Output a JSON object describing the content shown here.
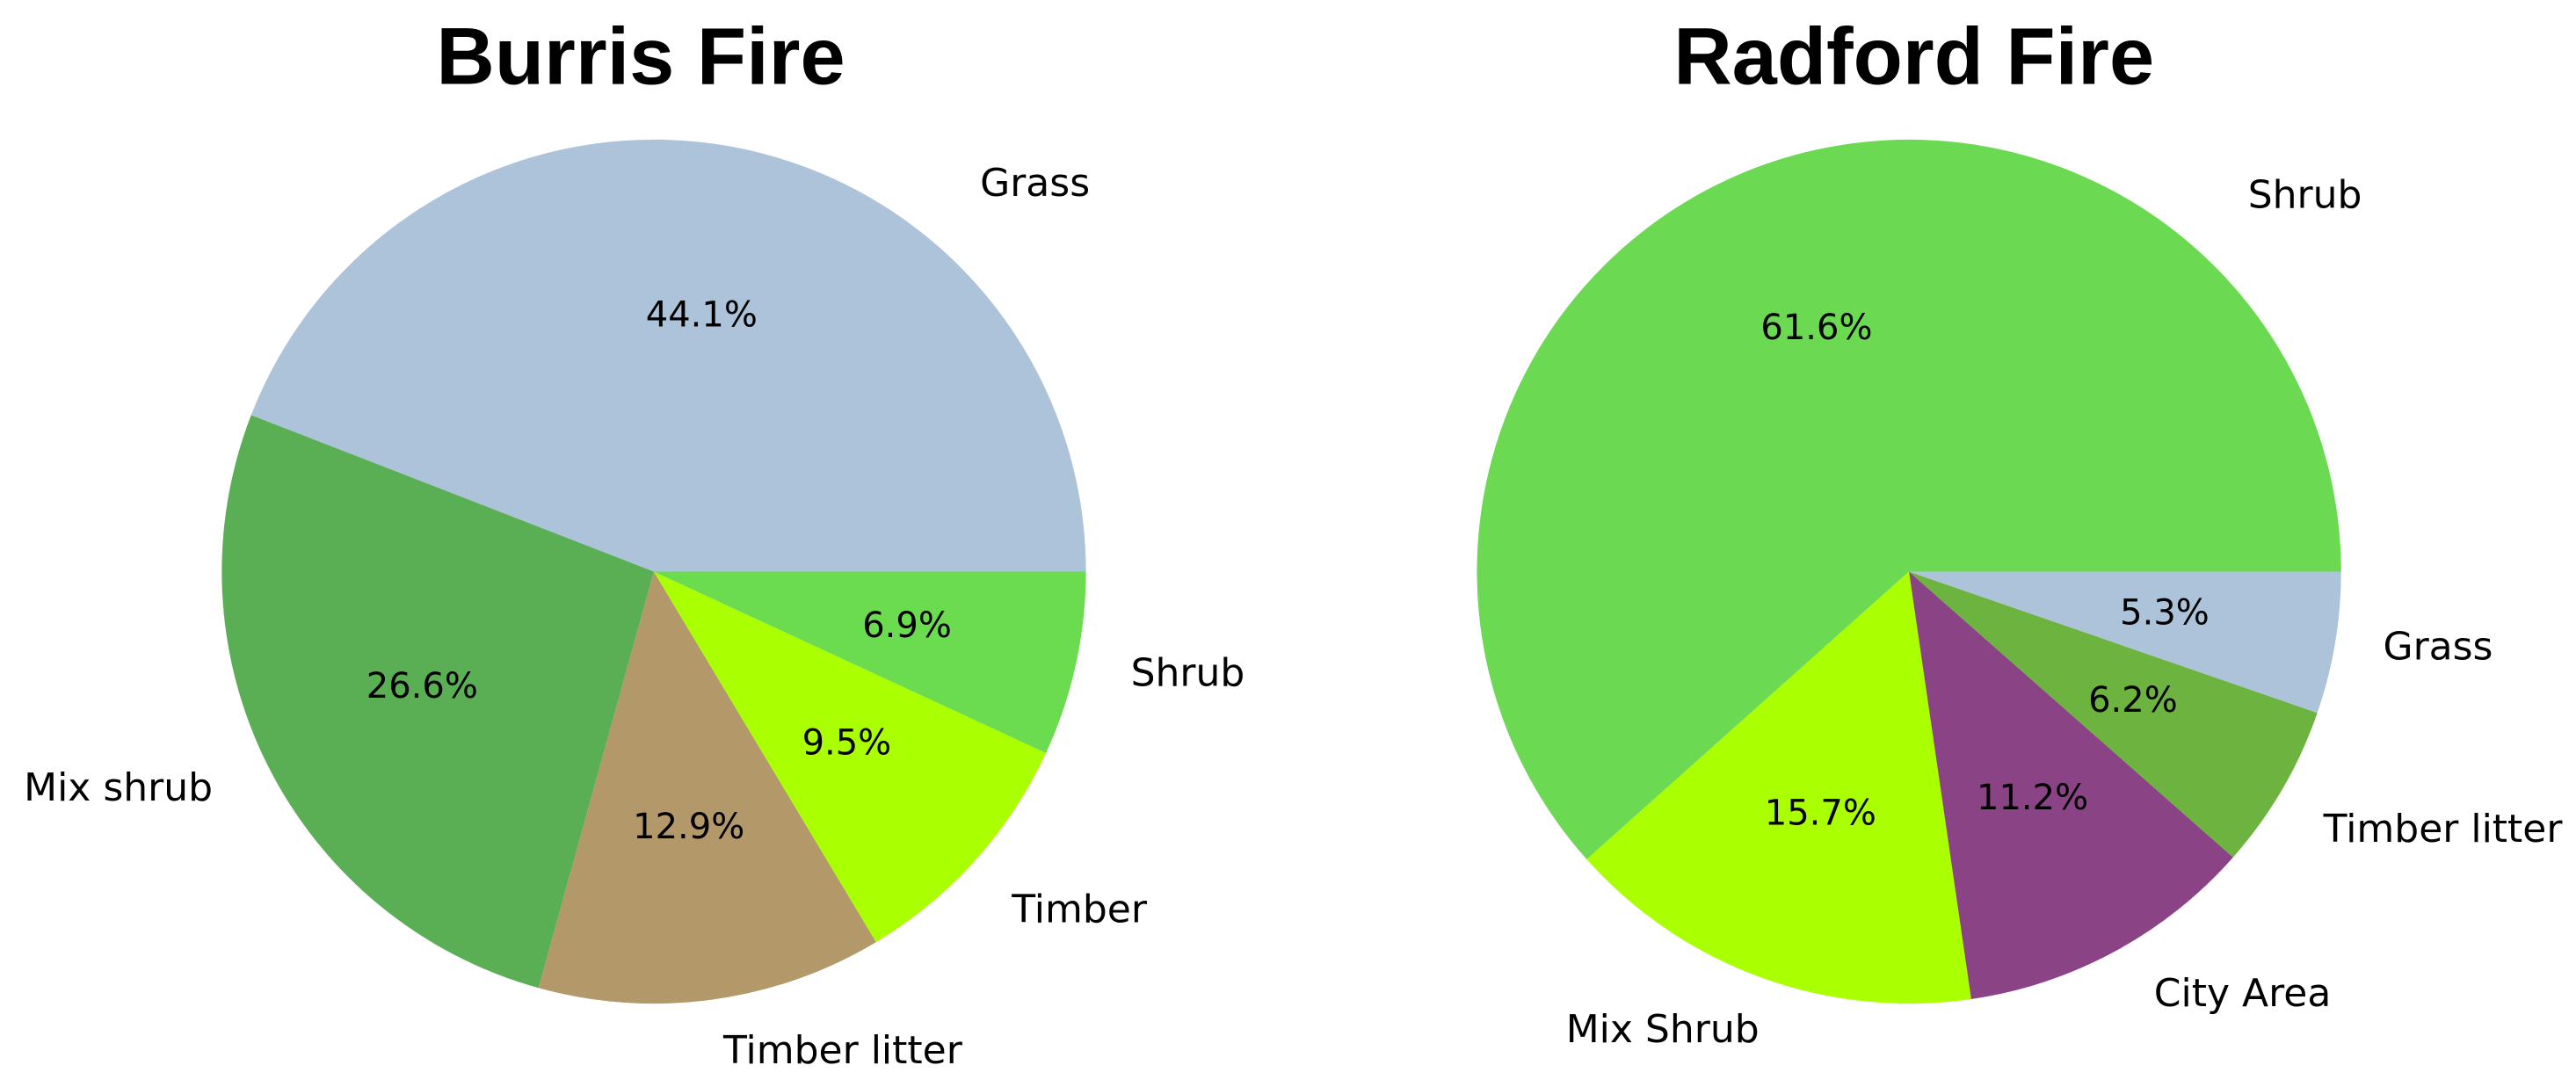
{
  "chart_data": [
    {
      "type": "pie",
      "title": "Burris Fire",
      "categories": [
        "Grass",
        "Mix shrub",
        "Timber litter",
        "Timber",
        "Shrub"
      ],
      "values": [
        44.1,
        26.6,
        12.9,
        9.5,
        6.9
      ],
      "value_labels": [
        "44.1%",
        "26.6%",
        "12.9%",
        "9.5%",
        "6.9%"
      ],
      "colors": [
        "#adc3d9",
        "#5aaf55",
        "#b3986a",
        "#aaff00",
        "#6bdb50"
      ]
    },
    {
      "type": "pie",
      "title": "Radford Fire",
      "categories": [
        "Shrub",
        "Mix Shrub",
        "City Area",
        "Timber litter",
        "Grass"
      ],
      "values": [
        61.6,
        15.7,
        11.2,
        6.2,
        5.3
      ],
      "value_labels": [
        "61.6%",
        "15.7%",
        "11.2%",
        "6.2%",
        "5.3%"
      ],
      "colors": [
        "#6bd951",
        "#aaff00",
        "#8a4486",
        "#6db33f",
        "#adc3d9"
      ]
    }
  ]
}
